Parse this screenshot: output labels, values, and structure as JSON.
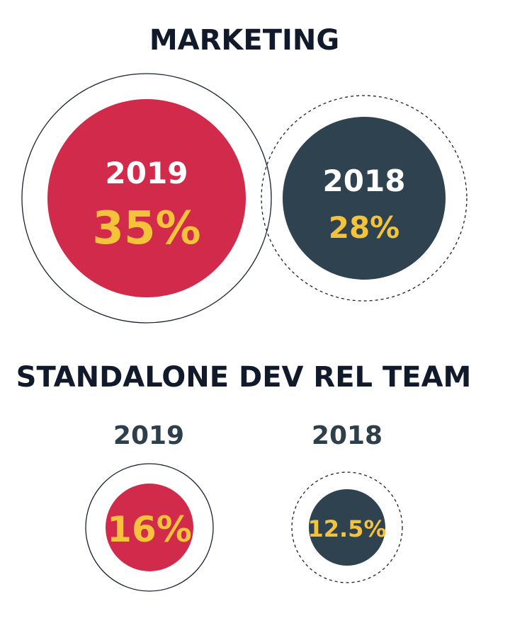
{
  "colors": {
    "red": "#d22a4a",
    "navy": "#2e424f",
    "yellow": "#f5c33b",
    "title": "#111a2b",
    "year_label": "#2e3f4c",
    "ring": "#1a2035"
  },
  "chart_data": [
    {
      "type": "bubble-comparison",
      "title": "MARKETING",
      "series": [
        {
          "year": "2019",
          "value": 35,
          "label": "35%",
          "color": "#d22a4a",
          "ring_style": "solid"
        },
        {
          "year": "2018",
          "value": 28,
          "label": "28%",
          "color": "#2e424f",
          "ring_style": "dashed"
        }
      ]
    },
    {
      "type": "bubble-comparison",
      "title": "STANDALONE DEV REL TEAM",
      "series": [
        {
          "year": "2019",
          "value": 16,
          "label": "16%",
          "color": "#d22a4a",
          "ring_style": "solid"
        },
        {
          "year": "2018",
          "value": 12.5,
          "label": "12.5%",
          "color": "#2e424f",
          "ring_style": "dashed"
        }
      ]
    }
  ]
}
